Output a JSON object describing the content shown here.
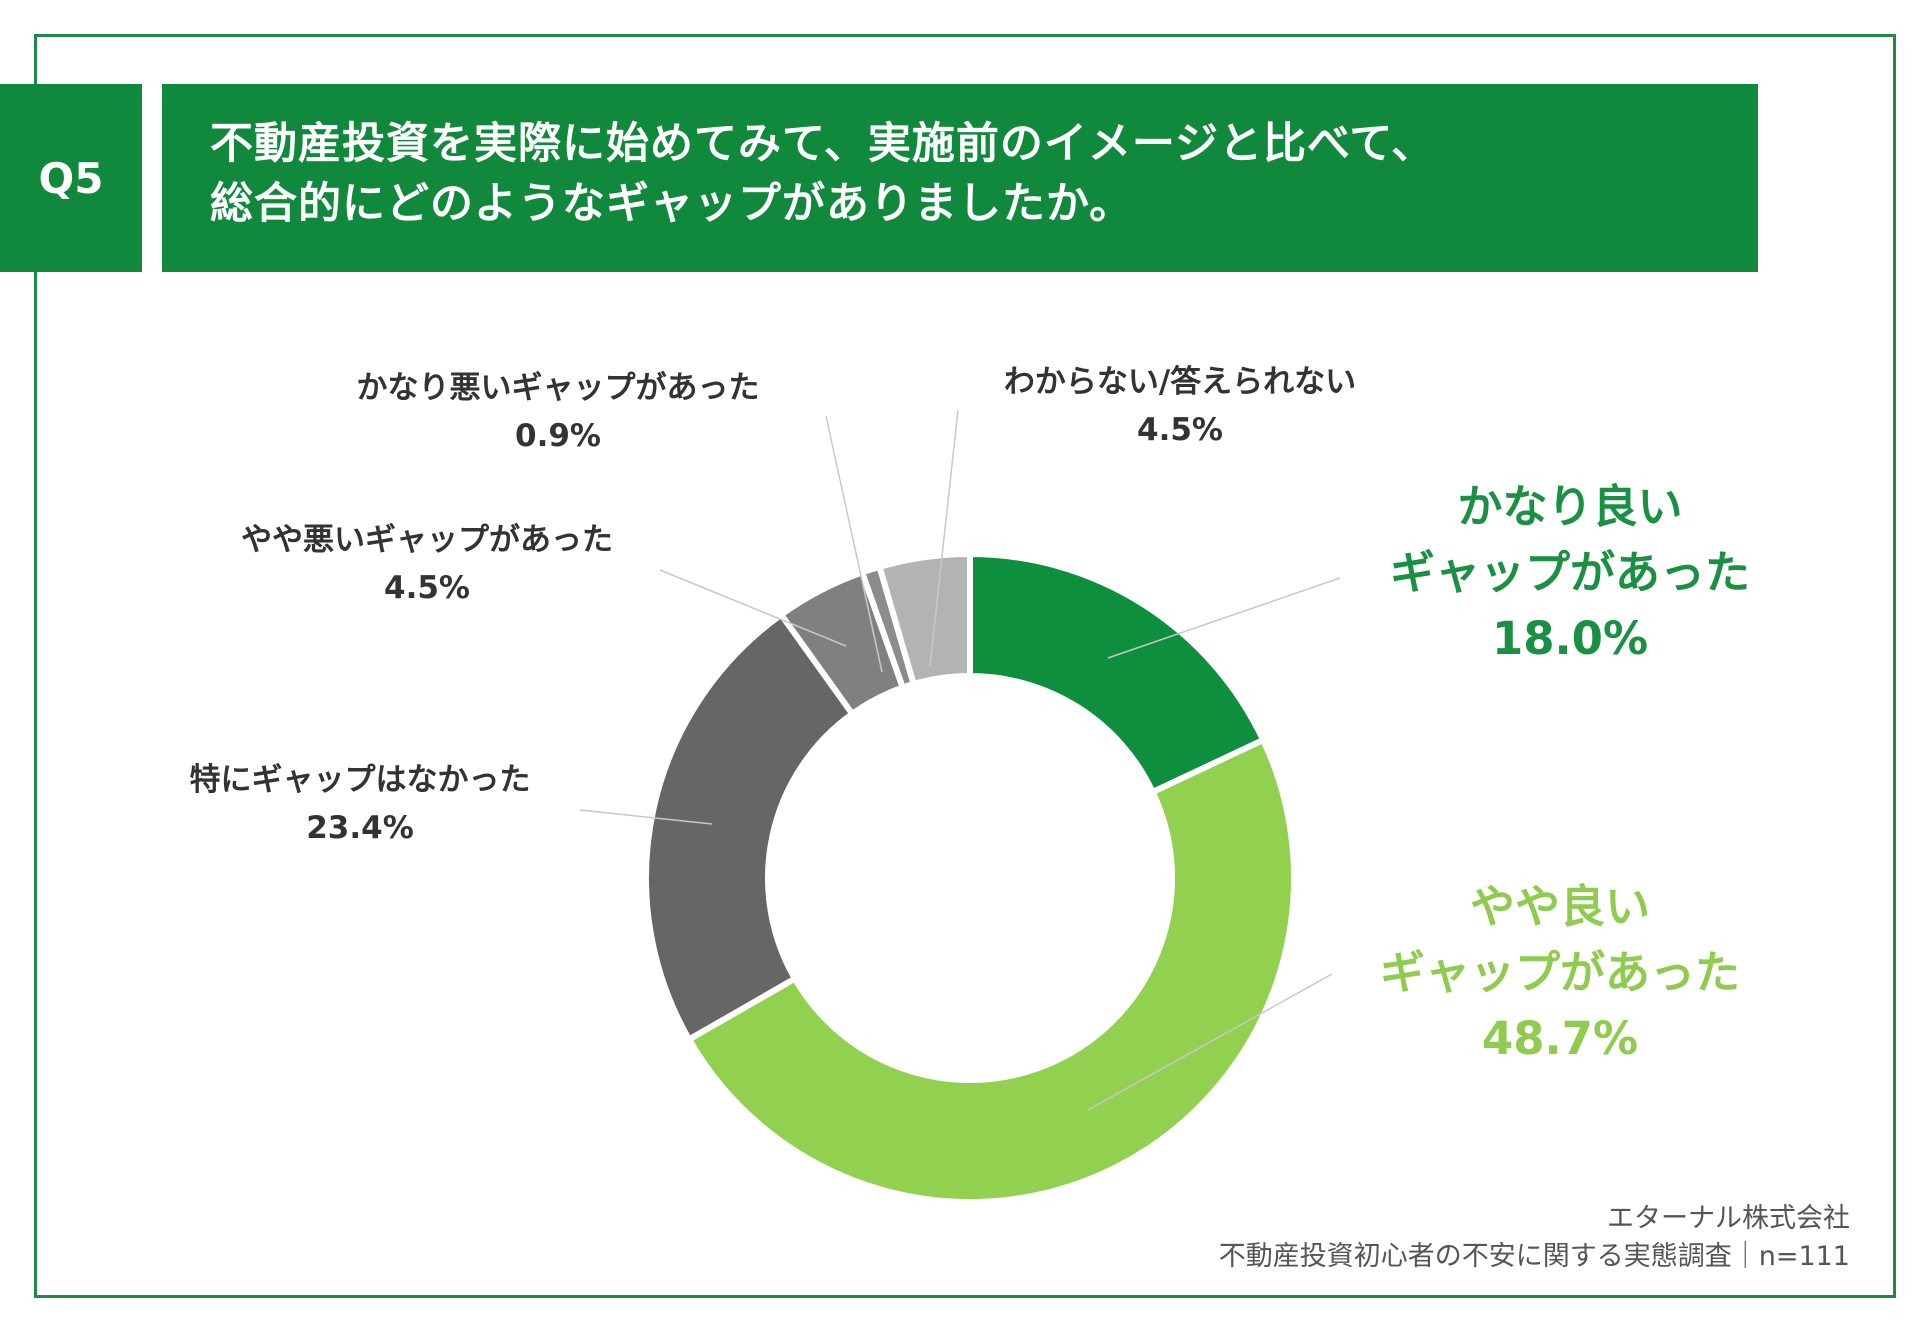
{
  "header": {
    "badge": "Q5",
    "title_line1": "不動産投資を実際に始めてみて、実施前のイメージと比べて、",
    "title_line2": "総合的にどのようなギャップがありましたか。"
  },
  "colors": {
    "brand_green": "#11893d",
    "frame_green": "#1f8a45"
  },
  "chart_data": {
    "type": "pie",
    "variant": "donut",
    "title": "不動産投資を実際に始めてみて、実施前のイメージと比べて、総合的にどのようなギャップがありましたか。",
    "unit": "%",
    "slices": [
      {
        "label": "かなり良いギャップがあった",
        "line1": "かなり良い",
        "line2": "ギャップがあった",
        "value": 18.0,
        "value_text": "18.0%",
        "color": "#0e8f3d",
        "label_color": "#1a9142"
      },
      {
        "label": "やや良いギャップがあった",
        "line1": "やや良い",
        "line2": "ギャップがあった",
        "value": 48.7,
        "value_text": "48.7%",
        "color": "#92d050",
        "label_color": "#8fcb4e"
      },
      {
        "label": "特にギャップはなかった",
        "value": 23.4,
        "value_text": "23.4%",
        "color": "#666666"
      },
      {
        "label": "やや悪いギャップがあった",
        "value": 4.5,
        "value_text": "4.5%",
        "color": "#808080"
      },
      {
        "label": "かなり悪いギャップがあった",
        "value": 0.9,
        "value_text": "0.9%",
        "color": "#8c8c8c"
      },
      {
        "label": "わからない/答えられない",
        "value": 4.5,
        "value_text": "4.5%",
        "color": "#b3b3b3"
      }
    ]
  },
  "footer": {
    "company": "エターナル株式会社",
    "survey": "不動産投資初心者の不安に関する実態調査｜n=111"
  }
}
